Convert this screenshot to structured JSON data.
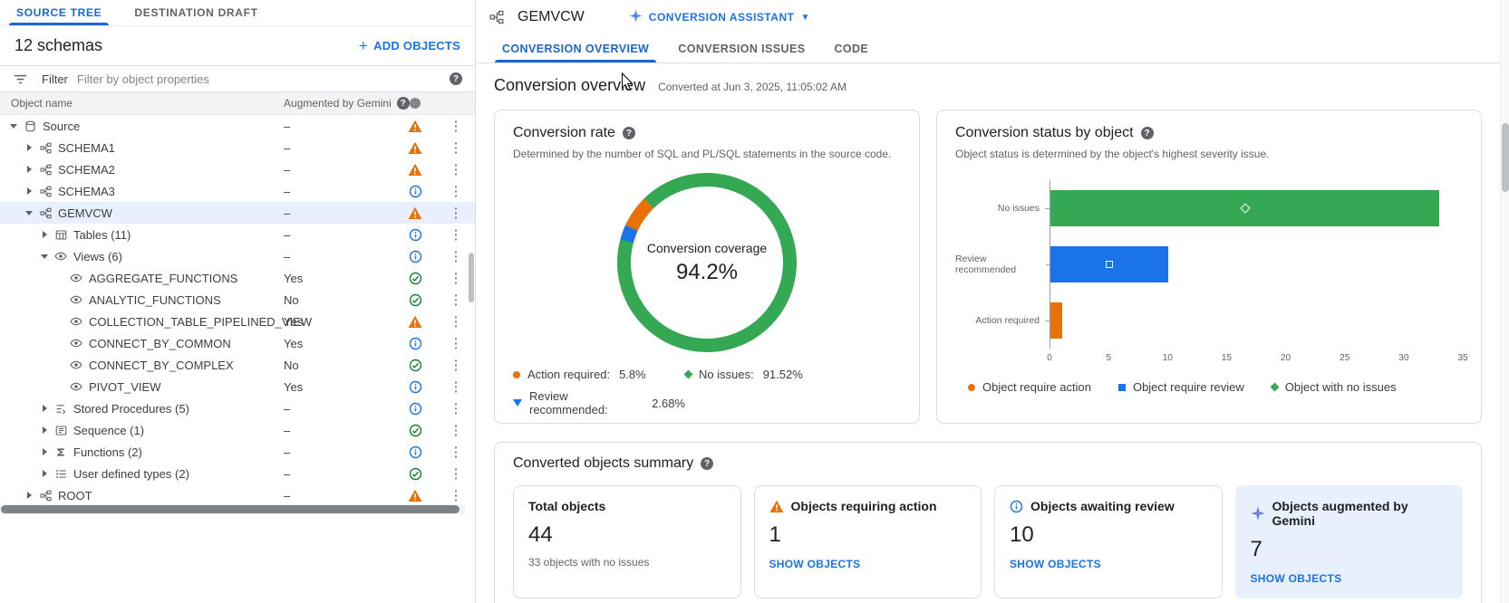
{
  "left": {
    "tabs": [
      {
        "label": "SOURCE TREE",
        "active": true
      },
      {
        "label": "DESTINATION DRAFT",
        "active": false
      }
    ],
    "schemas_label": "12 schemas",
    "add_objects_label": "ADD OBJECTS",
    "filter_label": "Filter",
    "filter_placeholder": "Filter by object properties",
    "col_object_name": "Object name",
    "col_augmented": "Augmented by Gemini",
    "rows": [
      {
        "name": "Source",
        "indent": 0,
        "caret": "down",
        "icon": "database",
        "augmented": "–",
        "status": "warning"
      },
      {
        "name": "SCHEMA1",
        "indent": 1,
        "caret": "right",
        "icon": "schema",
        "augmented": "–",
        "status": "warning"
      },
      {
        "name": "SCHEMA2",
        "indent": 1,
        "caret": "right",
        "icon": "schema",
        "augmented": "–",
        "status": "warning"
      },
      {
        "name": "SCHEMA3",
        "indent": 1,
        "caret": "right",
        "icon": "schema",
        "augmented": "–",
        "status": "info"
      },
      {
        "name": "GEMVCW",
        "indent": 1,
        "caret": "down",
        "icon": "schema",
        "augmented": "–",
        "status": "warning",
        "selected": true
      },
      {
        "name": "Tables (11)",
        "indent": 2,
        "caret": "right",
        "icon": "table",
        "augmented": "–",
        "status": "info"
      },
      {
        "name": "Views (6)",
        "indent": 2,
        "caret": "down",
        "icon": "eye",
        "augmented": "–",
        "status": "info"
      },
      {
        "name": "AGGREGATE_FUNCTIONS",
        "indent": 3,
        "caret": "none",
        "icon": "eye",
        "augmented": "Yes",
        "status": "success"
      },
      {
        "name": "ANALYTIC_FUNCTIONS",
        "indent": 3,
        "caret": "none",
        "icon": "eye",
        "augmented": "No",
        "status": "success"
      },
      {
        "name": "COLLECTION_TABLE_PIPELINED_VIEW",
        "indent": 3,
        "caret": "none",
        "icon": "eye",
        "augmented": "Yes",
        "status": "warning"
      },
      {
        "name": "CONNECT_BY_COMMON",
        "indent": 3,
        "caret": "none",
        "icon": "eye",
        "augmented": "Yes",
        "status": "info"
      },
      {
        "name": "CONNECT_BY_COMPLEX",
        "indent": 3,
        "caret": "none",
        "icon": "eye",
        "augmented": "No",
        "status": "success"
      },
      {
        "name": "PIVOT_VIEW",
        "indent": 3,
        "caret": "none",
        "icon": "eye",
        "augmented": "Yes",
        "status": "info"
      },
      {
        "name": "Stored Procedures (5)",
        "indent": 2,
        "caret": "right",
        "icon": "proc",
        "augmented": "–",
        "status": "info"
      },
      {
        "name": "Sequence (1)",
        "indent": 2,
        "caret": "right",
        "icon": "sequence",
        "augmented": "–",
        "status": "success"
      },
      {
        "name": "Functions (2)",
        "indent": 2,
        "caret": "right",
        "icon": "func",
        "augmented": "–",
        "status": "info"
      },
      {
        "name": "User defined types (2)",
        "indent": 2,
        "caret": "right",
        "icon": "udt",
        "augmented": "–",
        "status": "success"
      },
      {
        "name": "ROOT",
        "indent": 1,
        "caret": "right",
        "icon": "schema",
        "augmented": "–",
        "status": "warning"
      }
    ]
  },
  "workspace": {
    "title": "GEMVCW",
    "assistant_label": "CONVERSION ASSISTANT"
  },
  "tabs": [
    {
      "label": "CONVERSION OVERVIEW",
      "active": true
    },
    {
      "label": "CONVERSION ISSUES",
      "active": false
    },
    {
      "label": "CODE",
      "active": false
    }
  ],
  "overview": {
    "title": "Conversion overview",
    "converted_at": "Converted at Jun 3, 2025, 11:05:02 AM"
  },
  "conversion_rate_card": {
    "title": "Conversion rate",
    "description": "Determined by the number of SQL and PL/SQL statements in the source code.",
    "center_label": "Conversion coverage",
    "center_value": "94.2%",
    "legend": [
      {
        "marker": "circle",
        "color": "#e8710a",
        "label": "Action required:",
        "value": "5.8%",
        "col": 1
      },
      {
        "marker": "diamond",
        "color": "#34a853",
        "label": "No issues:",
        "value": "91.52%",
        "col": 2
      },
      {
        "marker": "triangle",
        "color": "#1a73e8",
        "label": "Review recommended:",
        "value": "2.68%",
        "col": 1
      }
    ]
  },
  "status_card": {
    "title": "Conversion status by object",
    "description": "Object status is determined by the object's highest severity issue.",
    "legend": [
      {
        "marker": "circle",
        "color": "#e8710a",
        "label": "Object require action"
      },
      {
        "marker": "square",
        "color": "#1a73e8",
        "label": "Object require review"
      },
      {
        "marker": "diamond",
        "color": "#34a853",
        "label": "Object with no issues"
      }
    ]
  },
  "chart_data": [
    {
      "type": "pie",
      "donut": true,
      "title": "Conversion rate",
      "center_label": "Conversion coverage",
      "center_value": "94.2%",
      "start_angle_deg": 285,
      "slices": [
        {
          "label": "Review recommended",
          "pct": 2.68,
          "color": "#1a73e8"
        },
        {
          "label": "Action required",
          "pct": 5.8,
          "color": "#e8710a"
        },
        {
          "label": "No issues",
          "pct": 91.52,
          "color": "#34a853"
        }
      ]
    },
    {
      "type": "bar",
      "orientation": "horizontal",
      "title": "Conversion status by object",
      "categories": [
        "No issues",
        "Review recommended",
        "Action required"
      ],
      "values": [
        33,
        10,
        1
      ],
      "colors": [
        "#34a853",
        "#1a73e8",
        "#e8710a"
      ],
      "bar_markers": [
        "diamond",
        "square",
        null
      ],
      "xlim": [
        0,
        35
      ],
      "xticks": [
        0,
        5,
        10,
        15,
        20,
        25,
        30,
        35
      ]
    }
  ],
  "summary": {
    "title": "Converted objects summary",
    "cards": [
      {
        "icon": "none",
        "title": "Total objects",
        "value": "44",
        "subtext": "33 objects with no issues"
      },
      {
        "icon": "warning",
        "title": "Objects requiring action",
        "value": "1",
        "link": "SHOW OBJECTS"
      },
      {
        "icon": "info",
        "title": "Objects awaiting review",
        "value": "10",
        "link": "SHOW OBJECTS"
      },
      {
        "icon": "gemini",
        "title": "Objects augmented by Gemini",
        "value": "7",
        "link": "SHOW OBJECTS",
        "highlight": true
      }
    ]
  }
}
